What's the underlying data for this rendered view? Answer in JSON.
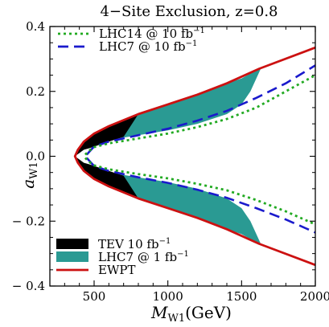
{
  "chart_data": {
    "type": "line",
    "title": "4−Site Exclusion, z=0.8",
    "xlabel": "M",
    "xlabel_sub": "W1",
    "xlabel_unit": "(GeV)",
    "ylabel": "a",
    "ylabel_sub": "W1",
    "xlim": [
      200,
      2000
    ],
    "ylim": [
      -0.4,
      0.4
    ],
    "x_ticks": [
      500,
      1000,
      1500,
      2000
    ],
    "x_tick_labels": [
      "500",
      "1000",
      "1500",
      "2000"
    ],
    "y_ticks": [
      -0.4,
      -0.2,
      0.0,
      0.2,
      0.4
    ],
    "y_tick_labels": [
      "− 0.4",
      "− 0.2",
      "0.0",
      "0.2",
      "0.4"
    ],
    "grid": false,
    "legend_top": [
      {
        "name": "LHC14  @ 10 fb",
        "sup": "−1",
        "color": "#22aa22",
        "style": "dotted"
      },
      {
        "name": "LHC7   @ 10 fb",
        "sup": "−1",
        "color": "#1a1acc",
        "style": "dashed"
      }
    ],
    "legend_bottom": [
      {
        "name": "TEV 10 fb",
        "sup": "−1",
        "color": "#000000",
        "style": "fill"
      },
      {
        "name": "LHC7   @   1 fb",
        "sup": "−1",
        "color": "#2a9a93",
        "style": "fill"
      },
      {
        "name": "EWPT",
        "color": "#cc1111",
        "style": "line"
      }
    ],
    "series": {
      "ewpt": {
        "color": "#cc1111",
        "x": [
          370,
          390,
          430,
          500,
          600,
          800,
          1000,
          1200,
          1400,
          1620,
          2000
        ],
        "upper": [
          0.0,
          0.02,
          0.045,
          0.07,
          0.093,
          0.13,
          0.16,
          0.19,
          0.225,
          0.27,
          0.335
        ],
        "lower": [
          0.0,
          -0.02,
          -0.045,
          -0.07,
          -0.093,
          -0.13,
          -0.16,
          -0.19,
          -0.225,
          -0.27,
          -0.335
        ]
      },
      "lhc14_10fb": {
        "color": "#22aa22",
        "x": [
          440,
          460,
          500,
          600,
          800,
          1000,
          1200,
          1400,
          1600,
          1800,
          2000
        ],
        "upper": [
          0.005,
          0.015,
          0.028,
          0.04,
          0.055,
          0.07,
          0.09,
          0.115,
          0.15,
          0.2,
          0.25
        ],
        "lower": [
          -0.005,
          -0.015,
          -0.028,
          -0.04,
          -0.055,
          -0.068,
          -0.085,
          -0.105,
          -0.135,
          -0.17,
          -0.21
        ]
      },
      "lhc7_10fb": {
        "color": "#1a1acc",
        "x": [
          450,
          470,
          500,
          600,
          800,
          1000,
          1200,
          1400,
          1600,
          1800,
          2000
        ],
        "upper": [
          0.005,
          0.015,
          0.03,
          0.045,
          0.065,
          0.085,
          0.11,
          0.14,
          0.18,
          0.225,
          0.28
        ],
        "lower": [
          -0.005,
          -0.015,
          -0.03,
          -0.045,
          -0.065,
          -0.082,
          -0.103,
          -0.128,
          -0.16,
          -0.195,
          -0.235
        ]
      },
      "lhc7_1fb": {
        "color": "#2a9a93",
        "x": [
          390,
          430,
          500,
          600,
          800,
          1000,
          1200,
          1400,
          1500,
          1560,
          1630
        ],
        "upper": [
          0.02,
          0.045,
          0.07,
          0.093,
          0.13,
          0.16,
          0.19,
          0.225,
          0.24,
          0.255,
          0.27
        ],
        "lower_bound_upper": [
          0.015,
          0.02,
          0.035,
          0.05,
          0.065,
          0.08,
          0.1,
          0.13,
          0.16,
          0.2,
          0.27
        ]
      },
      "tev_10fb": {
        "color": "#000000",
        "x": [
          375,
          400,
          430,
          470,
          520,
          600,
          700,
          800
        ],
        "upper": [
          0.005,
          0.025,
          0.045,
          0.06,
          0.075,
          0.093,
          0.113,
          0.13
        ],
        "inner": [
          0.002,
          0.01,
          0.02,
          0.025,
          0.033,
          0.045,
          0.06,
          0.13
        ]
      }
    }
  }
}
